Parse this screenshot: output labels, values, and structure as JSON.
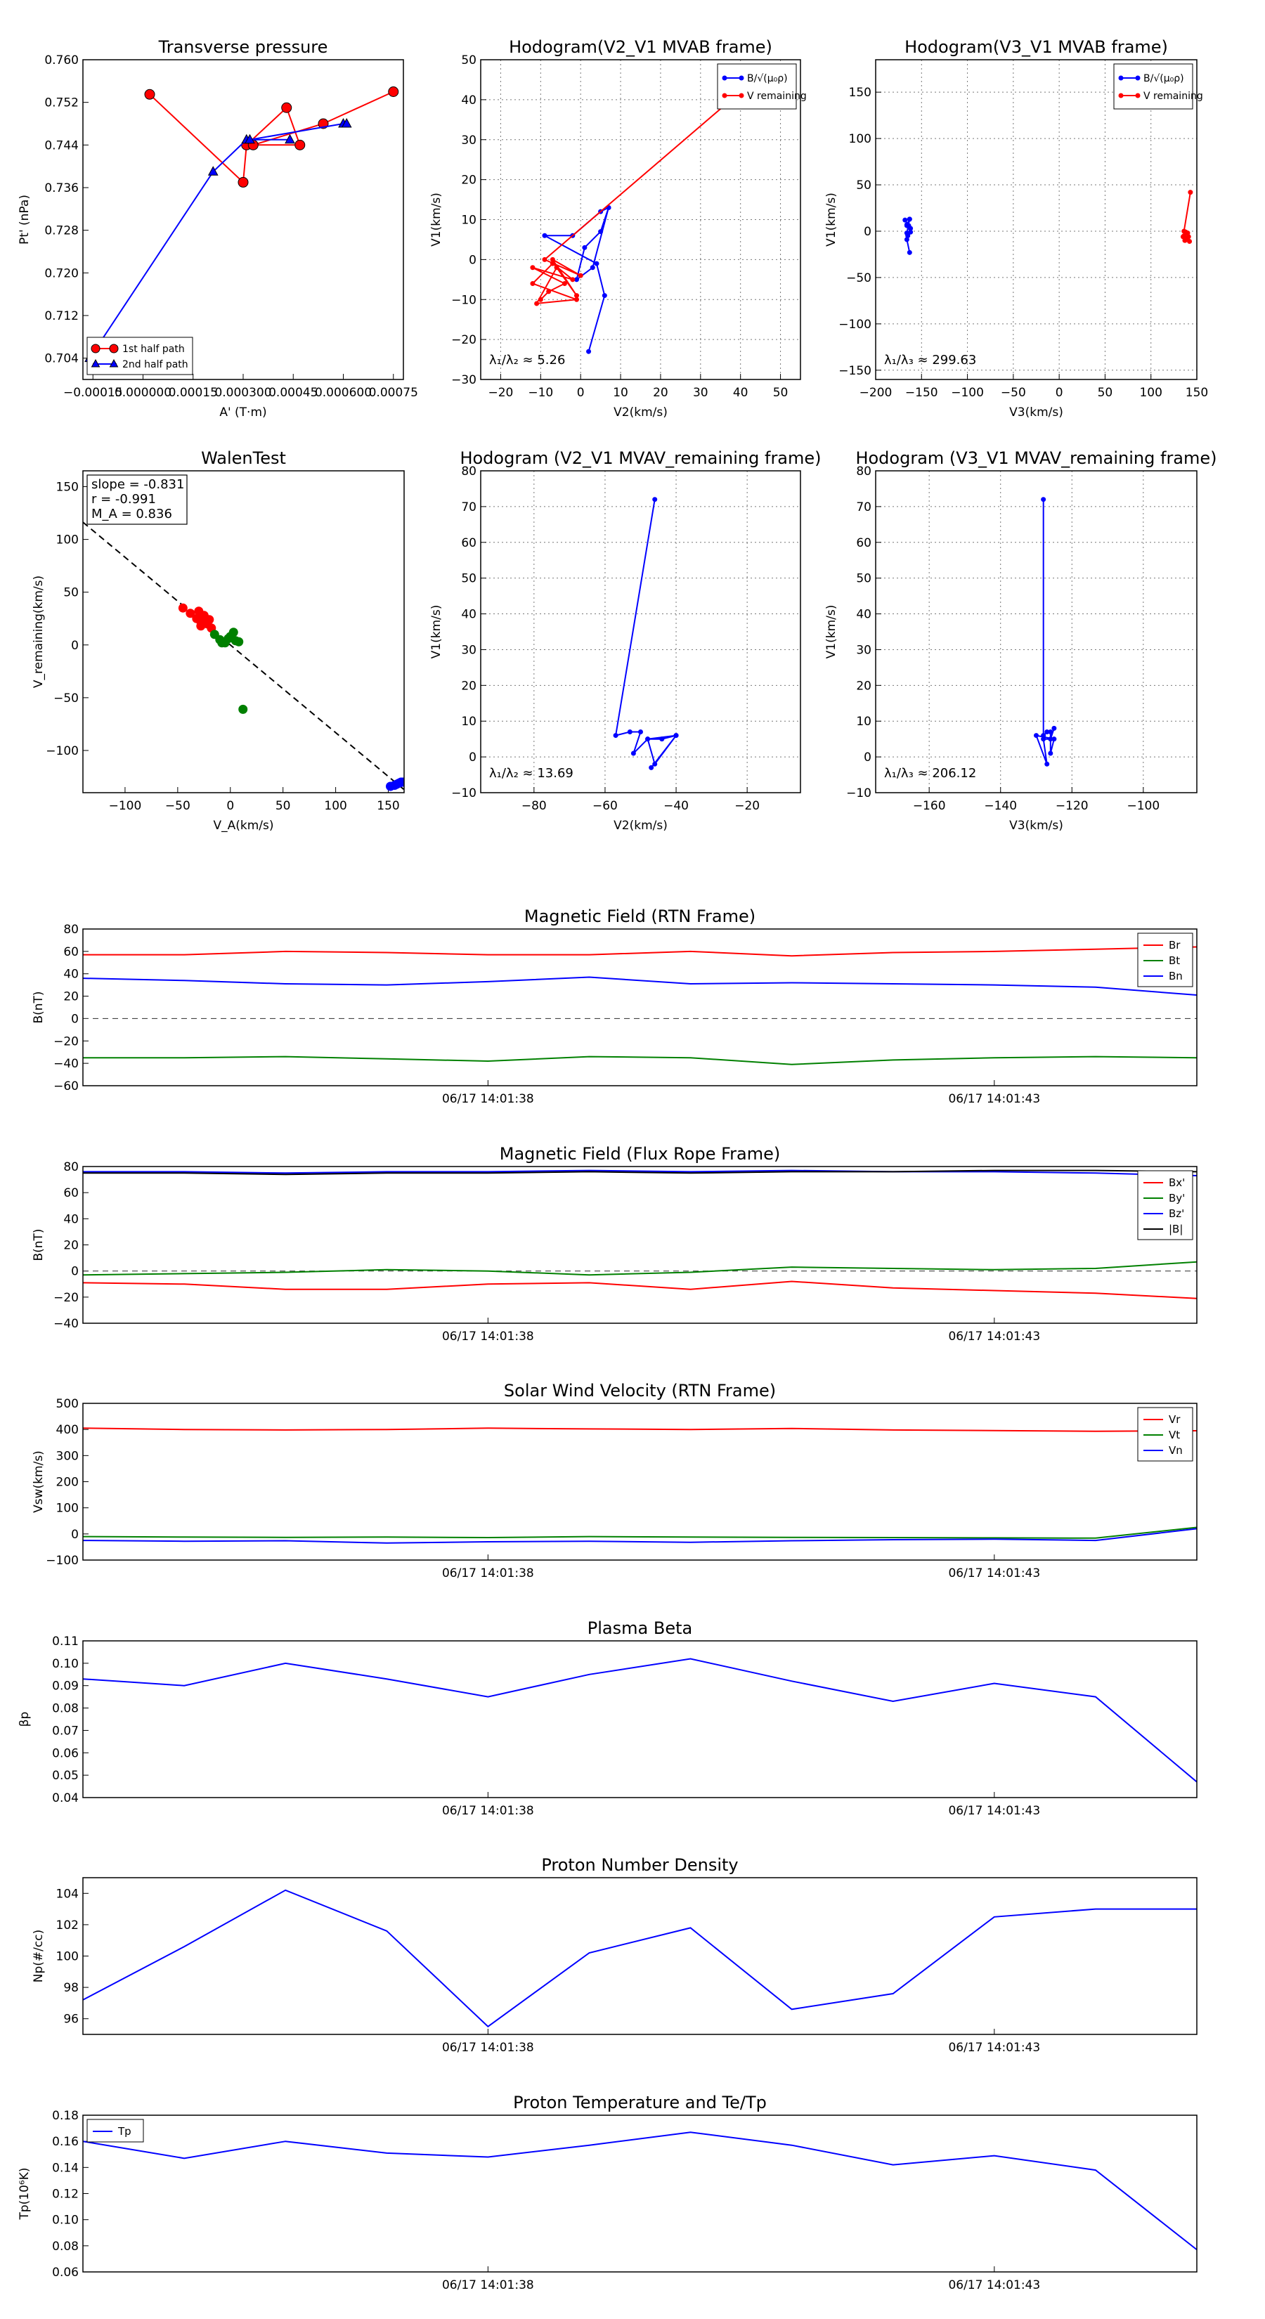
{
  "chart_data": [
    {
      "id": "tp",
      "type": "scatter",
      "title": "Transverse pressure",
      "xlabel": "A' (T·m)",
      "ylabel": "Pt' (nPa)",
      "xlim": [
        -0.00018,
        0.00078
      ],
      "ylim": [
        0.7,
        0.76
      ],
      "xticks": [
        -0.00015,
        0.0,
        0.00015,
        0.0003,
        0.00045,
        0.0006,
        0.00075
      ],
      "xticklabels": [
        "−0.00015",
        "0.000000",
        "0.00015",
        "0.000300",
        "0.00045",
        "0.000600",
        "0.00075"
      ],
      "yticks": [
        0.704,
        0.712,
        0.72,
        0.728,
        0.736,
        0.744,
        0.752,
        0.76
      ],
      "yticklabels": [
        "0.704",
        "0.712",
        "0.720",
        "0.728",
        "0.736",
        "0.744",
        "0.752",
        "0.760"
      ],
      "legend": [
        "1st half path",
        "2nd half path"
      ],
      "series": [
        {
          "name": "1st half path",
          "color": "#ff0000",
          "marker": "circle",
          "x": [
            2e-05,
            0.0003,
            0.00031,
            0.00043,
            0.00047,
            0.00033,
            0.00054,
            0.00075
          ],
          "y": [
            0.7535,
            0.737,
            0.744,
            0.751,
            0.744,
            0.744,
            0.748,
            0.754
          ]
        },
        {
          "name": "2nd half path",
          "color": "#0000ff",
          "marker": "triangle",
          "x": [
            -0.00016,
            0.00021,
            0.00031,
            0.00044,
            0.00032,
            0.0006,
            0.00061
          ],
          "y": [
            0.704,
            0.739,
            0.745,
            0.745,
            0.745,
            0.748,
            0.748
          ]
        }
      ]
    },
    {
      "id": "h1",
      "type": "line",
      "title": "Hodogram(V2_V1 MVAB frame)",
      "xlabel": "V2(km/s)",
      "ylabel": "V1(km/s)",
      "xlim": [
        -25,
        55
      ],
      "ylim": [
        -30,
        50
      ],
      "xticks": [
        -20,
        -10,
        0,
        10,
        20,
        30,
        40,
        50
      ],
      "yticks": [
        -30,
        -20,
        -10,
        0,
        10,
        20,
        30,
        40,
        50
      ],
      "grid": true,
      "legend": [
        "B/√(μ₀ρ)",
        "V remaining"
      ],
      "annotation": "λ₁/λ₂ ≈ 5.26",
      "series": [
        {
          "name": "B/sqrt(mu0 rho)",
          "color": "#0000ff",
          "x": [
            2,
            6,
            4,
            -9,
            -2,
            5,
            7,
            3,
            -1,
            1,
            5,
            7
          ],
          "y": [
            -23,
            -9,
            -1,
            6,
            6,
            12,
            13,
            -2,
            -5,
            3,
            7,
            13
          ]
        },
        {
          "name": "V remaining",
          "color": "#ff0000",
          "x": [
            -10,
            -8,
            -4,
            -12,
            -2,
            -7,
            -12,
            -1,
            -11,
            -6,
            -1,
            -7,
            0,
            -9,
            47
          ],
          "y": [
            -10,
            -8,
            -6,
            -2,
            -5,
            -1,
            -6,
            -10,
            -11,
            -2,
            -9,
            0,
            -4,
            0,
            48
          ]
        }
      ]
    },
    {
      "id": "h2",
      "type": "line",
      "title": "Hodogram(V3_V1 MVAB frame)",
      "xlabel": "V3(km/s)",
      "ylabel": "V1(km/s)",
      "xlim": [
        -200,
        150
      ],
      "ylim": [
        -160,
        185
      ],
      "xticks": [
        -200,
        -150,
        -100,
        -50,
        0,
        50,
        100,
        150
      ],
      "yticks": [
        -150,
        -100,
        -50,
        0,
        50,
        100,
        150
      ],
      "grid": true,
      "legend": [
        "B/√(μ₀ρ)",
        "V remaining"
      ],
      "annotation": "λ₁/λ₃ ≈ 299.63",
      "series": [
        {
          "name": "B/sqrt(mu0 rho)",
          "color": "#0000ff",
          "x": [
            -163,
            -166,
            -162,
            -166,
            -164,
            -168,
            -163,
            -166,
            -165,
            -162,
            -166,
            -163
          ],
          "y": [
            -23,
            -9,
            -1,
            6,
            6,
            12,
            13,
            -2,
            -5,
            3,
            7,
            13
          ]
        },
        {
          "name": "V remaining",
          "color": "#ff0000",
          "x": [
            137,
            139,
            135,
            140,
            136,
            138,
            141,
            137,
            142,
            139,
            136,
            143
          ],
          "y": [
            -10,
            -8,
            -6,
            -2,
            -5,
            -1,
            -6,
            -10,
            -11,
            -2,
            0,
            42
          ]
        }
      ]
    },
    {
      "id": "walen",
      "type": "scatter",
      "title": "WalenTest",
      "xlabel": "V_A(km/s)",
      "ylabel": "V_remaining(km/s)",
      "xlim": [
        -140,
        165
      ],
      "ylim": [
        -140,
        165
      ],
      "xticks": [
        -100,
        -50,
        0,
        50,
        100,
        150
      ],
      "yticks": [
        -100,
        -50,
        0,
        50,
        100,
        150
      ],
      "textbox": [
        "slope = -0.831",
        "r = -0.991",
        "M_A = 0.836"
      ],
      "fit_line": {
        "x": [
          -140,
          165
        ],
        "y": [
          116.3,
          -137.1
        ]
      },
      "series": [
        {
          "name": "first",
          "color": "#ff0000",
          "x": [
            -45,
            -38,
            -32,
            -28,
            -22,
            -28,
            -18,
            -25,
            -20,
            -30
          ],
          "y": [
            35,
            30,
            25,
            22,
            20,
            18,
            16,
            28,
            24,
            32
          ]
        },
        {
          "name": "second",
          "color": "#008000",
          "x": [
            -15,
            -10,
            -5,
            0,
            5,
            3,
            -2,
            8,
            -8,
            12
          ],
          "y": [
            10,
            5,
            2,
            8,
            4,
            12,
            6,
            3,
            2,
            -61
          ]
        },
        {
          "name": "wave",
          "color": "#0000ff",
          "x": [
            152,
            156,
            158,
            160,
            162,
            163,
            164,
            165
          ],
          "y": [
            -134,
            -133,
            -132,
            -131,
            -130,
            -130,
            -130,
            -130
          ]
        }
      ]
    },
    {
      "id": "h3",
      "type": "line",
      "title": "Hodogram (V2_V1 MVAV_remaining frame)",
      "xlabel": "V2(km/s)",
      "ylabel": "V1(km/s)",
      "xlim": [
        -95,
        -5
      ],
      "ylim": [
        -10,
        80
      ],
      "xticks": [
        -80,
        -60,
        -40,
        -20
      ],
      "yticks": [
        -10,
        0,
        10,
        20,
        30,
        40,
        50,
        60,
        70,
        80
      ],
      "grid": true,
      "annotation": "λ₁/λ₂ ≈ 13.69",
      "series": [
        {
          "name": "V",
          "color": "#0000ff",
          "x": [
            -46,
            -57,
            -53,
            -50,
            -52,
            -48,
            -40,
            -46,
            -48,
            -44,
            -40,
            -47
          ],
          "y": [
            72,
            6,
            7,
            7,
            1,
            5,
            6,
            -2,
            5,
            5,
            6,
            -3
          ]
        }
      ]
    },
    {
      "id": "h4",
      "type": "line",
      "title": "Hodogram (V3_V1 MVAV_remaining frame)",
      "xlabel": "V3(km/s)",
      "ylabel": "V1(km/s)",
      "xlim": [
        -175,
        -85
      ],
      "ylim": [
        -10,
        80
      ],
      "xticks": [
        -160,
        -140,
        -120,
        -100
      ],
      "yticks": [
        -10,
        0,
        10,
        20,
        30,
        40,
        50,
        60,
        70,
        80
      ],
      "grid": true,
      "annotation": "λ₁/λ₃ ≈ 206.12",
      "series": [
        {
          "name": "V",
          "color": "#0000ff",
          "x": [
            -128,
            -128,
            -127,
            -126,
            -126,
            -125,
            -130,
            -127,
            -128,
            -126,
            -125
          ],
          "y": [
            72,
            6,
            7,
            7,
            1,
            5,
            6,
            -2,
            5,
            5,
            8
          ]
        }
      ]
    },
    {
      "id": "mag_rtn",
      "type": "line",
      "title": "Magnetic Field (RTN Frame)",
      "ylabel": "B(nT)",
      "ylim": [
        -60,
        80
      ],
      "yticks": [
        -60,
        -40,
        -20,
        0,
        20,
        40,
        60,
        80
      ],
      "xlim": [
        0,
        11
      ],
      "xticks": [
        4,
        9
      ],
      "xticklabels": [
        "06/17 14:01:38",
        "06/17 14:01:43"
      ],
      "zero_line": true,
      "legend": [
        "Br",
        "Bt",
        "Bn"
      ],
      "x": [
        0,
        1,
        2,
        3,
        4,
        5,
        6,
        7,
        8,
        9,
        10,
        11
      ],
      "series": [
        {
          "name": "Br",
          "color": "#ff0000",
          "values": [
            57,
            57,
            60,
            59,
            57,
            57,
            60,
            56,
            59,
            60,
            62,
            64
          ]
        },
        {
          "name": "Bt",
          "color": "#008000",
          "values": [
            -35,
            -35,
            -34,
            -36,
            -38,
            -34,
            -35,
            -41,
            -37,
            -35,
            -34,
            -35
          ]
        },
        {
          "name": "Bn",
          "color": "#0000ff",
          "values": [
            36,
            34,
            31,
            30,
            33,
            37,
            31,
            32,
            31,
            30,
            28,
            21
          ]
        }
      ]
    },
    {
      "id": "mag_fr",
      "type": "line",
      "title": "Magnetic Field (Flux Rope Frame)",
      "ylabel": "B(nT)",
      "ylim": [
        -40,
        80
      ],
      "yticks": [
        -40,
        -20,
        0,
        20,
        40,
        60,
        80
      ],
      "xlim": [
        0,
        11
      ],
      "xticks": [
        4,
        9
      ],
      "xticklabels": [
        "06/17 14:01:38",
        "06/17 14:01:43"
      ],
      "zero_line": true,
      "legend": [
        "Bx'",
        "By'",
        "Bz'",
        "|B|"
      ],
      "x": [
        0,
        1,
        2,
        3,
        4,
        5,
        6,
        7,
        8,
        9,
        10,
        11
      ],
      "series": [
        {
          "name": "Bx'",
          "color": "#ff0000",
          "values": [
            -9,
            -10,
            -14,
            -14,
            -10,
            -9,
            -14,
            -8,
            -13,
            -15,
            -17,
            -21
          ]
        },
        {
          "name": "By'",
          "color": "#008000",
          "values": [
            -3,
            -2,
            -1,
            1,
            0,
            -3,
            -1,
            3,
            2,
            1,
            2,
            7
          ]
        },
        {
          "name": "Bz'",
          "color": "#0000ff",
          "values": [
            76,
            76,
            75,
            76,
            76,
            77,
            76,
            77,
            76,
            76,
            75,
            73
          ]
        },
        {
          "name": "|B|",
          "color": "#000000",
          "values": [
            75,
            75,
            74,
            75,
            75,
            76,
            75,
            76,
            76,
            77,
            77,
            76
          ]
        }
      ]
    },
    {
      "id": "vel",
      "type": "line",
      "title": "Solar Wind Velocity (RTN Frame)",
      "ylabel": "Vsw(km/s)",
      "ylim": [
        -100,
        500
      ],
      "yticks": [
        -100,
        0,
        100,
        200,
        300,
        400,
        500
      ],
      "xlim": [
        0,
        11
      ],
      "xticks": [
        4,
        9
      ],
      "xticklabels": [
        "06/17 14:01:38",
        "06/17 14:01:43"
      ],
      "legend": [
        "Vr",
        "Vt",
        "Vn"
      ],
      "x": [
        0,
        1,
        2,
        3,
        4,
        5,
        6,
        7,
        8,
        9,
        10,
        11
      ],
      "series": [
        {
          "name": "Vr",
          "color": "#ff0000",
          "values": [
            405,
            400,
            398,
            400,
            405,
            402,
            400,
            404,
            398,
            396,
            393,
            395
          ]
        },
        {
          "name": "Vt",
          "color": "#008000",
          "values": [
            -10,
            -12,
            -13,
            -12,
            -14,
            -10,
            -12,
            -13,
            -14,
            -15,
            -16,
            25
          ]
        },
        {
          "name": "Vn",
          "color": "#0000ff",
          "values": [
            -25,
            -28,
            -26,
            -35,
            -30,
            -28,
            -32,
            -26,
            -22,
            -20,
            -25,
            20
          ]
        }
      ]
    },
    {
      "id": "beta",
      "type": "line",
      "title": "Plasma Beta",
      "ylabel": "βp",
      "ylim": [
        0.04,
        0.11
      ],
      "yticks": [
        0.04,
        0.05,
        0.06,
        0.07,
        0.08,
        0.09,
        0.1,
        0.11
      ],
      "yticklabels": [
        "0.04",
        "0.05",
        "0.06",
        "0.07",
        "0.08",
        "0.09",
        "0.10",
        "0.11"
      ],
      "xlim": [
        0,
        11
      ],
      "xticks": [
        4,
        9
      ],
      "xticklabels": [
        "06/17 14:01:38",
        "06/17 14:01:43"
      ],
      "x": [
        0,
        1,
        2,
        3,
        4,
        5,
        6,
        7,
        8,
        9,
        10,
        11
      ],
      "series": [
        {
          "name": "beta",
          "color": "#0000ff",
          "values": [
            0.093,
            0.09,
            0.1,
            0.093,
            0.085,
            0.095,
            0.102,
            0.092,
            0.083,
            0.091,
            0.085,
            0.047
          ]
        }
      ]
    },
    {
      "id": "np",
      "type": "line",
      "title": "Proton Number Density",
      "ylabel": "Np(#/cc)",
      "ylim": [
        95,
        105
      ],
      "yticks": [
        96,
        98,
        100,
        102,
        104
      ],
      "xlim": [
        0,
        11
      ],
      "xticks": [
        4,
        9
      ],
      "xticklabels": [
        "06/17 14:01:38",
        "06/17 14:01:43"
      ],
      "x": [
        0,
        1,
        2,
        3,
        4,
        5,
        6,
        7,
        8,
        9,
        10,
        11
      ],
      "series": [
        {
          "name": "Np",
          "color": "#0000ff",
          "values": [
            97.2,
            100.6,
            104.2,
            101.6,
            95.5,
            100.2,
            101.8,
            96.6,
            97.6,
            102.5,
            103.0,
            103.0
          ]
        }
      ]
    },
    {
      "id": "tp_temp",
      "type": "line",
      "title": "Proton Temperature and Te/Tp",
      "ylabel": "Tp(10⁶K)",
      "ylim": [
        0.06,
        0.18
      ],
      "yticks": [
        0.06,
        0.08,
        0.1,
        0.12,
        0.14,
        0.16,
        0.18
      ],
      "yticklabels": [
        "0.06",
        "0.08",
        "0.10",
        "0.12",
        "0.14",
        "0.16",
        "0.18"
      ],
      "xlim": [
        0,
        11
      ],
      "xticks": [
        4,
        9
      ],
      "xticklabels": [
        "06/17 14:01:38",
        "06/17 14:01:43"
      ],
      "legend": [
        "Tp"
      ],
      "x": [
        0,
        1,
        2,
        3,
        4,
        5,
        6,
        7,
        8,
        9,
        10,
        11
      ],
      "series": [
        {
          "name": "Tp",
          "color": "#0000ff",
          "values": [
            0.16,
            0.147,
            0.16,
            0.151,
            0.148,
            0.157,
            0.167,
            0.157,
            0.142,
            0.149,
            0.138,
            0.077
          ]
        }
      ]
    }
  ]
}
